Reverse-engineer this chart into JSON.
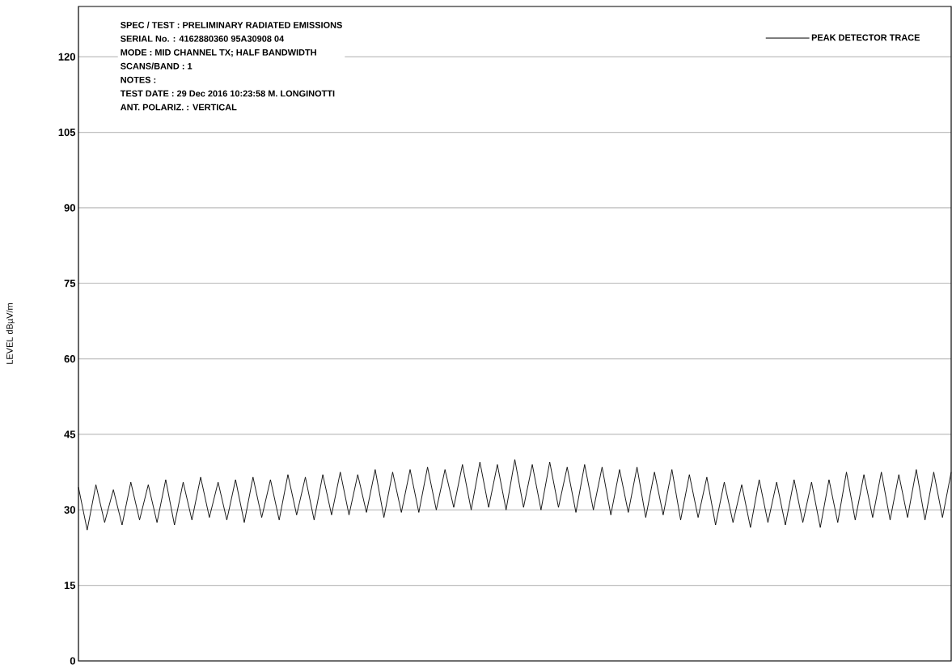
{
  "chart_data": {
    "type": "line",
    "ylabel": "LEVEL  dBµV/m",
    "annotations": [
      "SPEC / TEST   : PRELIMINARY RADIATED EMISSIONS",
      "SERIAL No.     : 4162880360 95A30908 04",
      "MODE             : MID CHANNEL TX; HALF BANDWIDTH",
      "SCANS/BAND    : 1",
      "NOTES            :",
      "TEST DATE      : 29 Dec 2016 10:23:58  M. LONGINOTTI",
      "ANT. POLARIZ. : VERTICAL"
    ],
    "categories": [
      null,
      null,
      null,
      null,
      null,
      null,
      null,
      null,
      null,
      null,
      null,
      null,
      null,
      null,
      null,
      null,
      null,
      null,
      null,
      null,
      null,
      null,
      null,
      null,
      null,
      null,
      null,
      null,
      null,
      null,
      null,
      null,
      null,
      null,
      null,
      null,
      null,
      null,
      null,
      null,
      null,
      null,
      null,
      null,
      null,
      null,
      null,
      null,
      null,
      null,
      null,
      null,
      null,
      null,
      null,
      null,
      null,
      null,
      null,
      null,
      null,
      null,
      null,
      null,
      null,
      null,
      null,
      null,
      null,
      null,
      null,
      null,
      null,
      null,
      null,
      null,
      null,
      null,
      null,
      null,
      null,
      null,
      null,
      null,
      null,
      null,
      null,
      null,
      null,
      null,
      null,
      null,
      null,
      null,
      null,
      null,
      null,
      null,
      null,
      null,
      null
    ],
    "series": [
      {
        "name": "PEAK  DETECTOR TRACE",
        "color": "#000000",
        "values": [
          34.5,
          26.0,
          35.0,
          27.5,
          34.0,
          27.0,
          35.5,
          28.0,
          35.0,
          27.5,
          36.0,
          27.0,
          35.5,
          28.0,
          36.5,
          28.5,
          35.5,
          28.0,
          36.0,
          27.5,
          36.5,
          28.5,
          36.0,
          28.0,
          37.0,
          29.0,
          36.5,
          28.0,
          37.0,
          29.0,
          37.5,
          29.0,
          37.0,
          29.5,
          38.0,
          28.5,
          37.5,
          29.5,
          38.0,
          29.5,
          38.5,
          30.0,
          38.0,
          30.5,
          39.0,
          30.0,
          39.5,
          30.5,
          39.0,
          30.0,
          40.0,
          30.5,
          39.0,
          30.0,
          39.5,
          30.5,
          38.5,
          29.5,
          39.0,
          30.0,
          38.5,
          29.0,
          38.0,
          29.5,
          38.5,
          28.5,
          37.5,
          29.0,
          38.0,
          28.0,
          37.0,
          28.5,
          36.5,
          27.0,
          35.5,
          27.5,
          35.0,
          26.5,
          36.0,
          27.5,
          35.5,
          27.0,
          36.0,
          27.5,
          35.5,
          26.5,
          36.0,
          27.5,
          37.5,
          28.0,
          37.0,
          28.5,
          37.5,
          28.0,
          37.0,
          28.5,
          38.0,
          28.0,
          37.5,
          28.5,
          37.5
        ]
      }
    ],
    "ylim": [
      0,
      130
    ],
    "yticks": [
      0,
      15,
      30,
      45,
      60,
      75,
      90,
      105,
      120
    ],
    "tick_labels": "y",
    "grid": "y",
    "legend": "top right",
    "marker": "none",
    "line_style": "solid"
  }
}
